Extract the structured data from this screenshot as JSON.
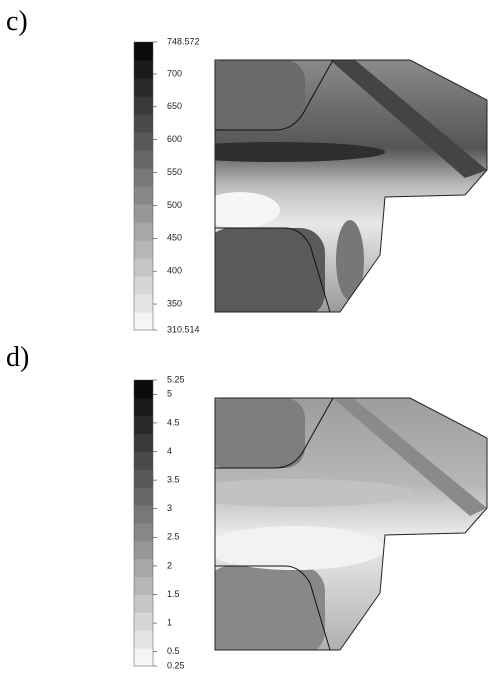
{
  "panels": [
    {
      "label": "c)",
      "scale": {
        "range": [
          310.514,
          748.572
        ],
        "ticks": [
          748.572,
          700,
          650,
          600,
          550,
          500,
          450,
          400,
          350,
          310.514
        ]
      }
    },
    {
      "label": "d)",
      "scale": {
        "range": [
          0.25,
          5.25
        ],
        "ticks": [
          5.25,
          5,
          4.5,
          4,
          3.5,
          3,
          2.5,
          2,
          1.5,
          1,
          0.5,
          0.25
        ]
      }
    }
  ]
}
